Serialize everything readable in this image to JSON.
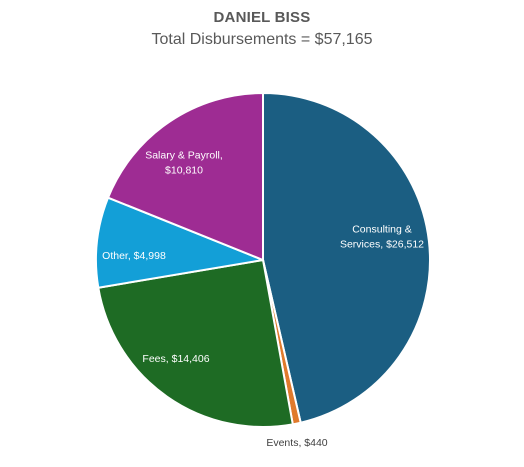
{
  "chart_data": {
    "type": "pie",
    "title": "DANIEL BISS",
    "subtitle": "Total Disbursements = $57,165",
    "slices": [
      {
        "label": "Consulting & Services",
        "value": 26512,
        "value_text": "$26,512",
        "color": "#1b5e82",
        "label_color": "#ffffff",
        "label_lines": [
          "Consulting &",
          "Services, $26,512"
        ]
      },
      {
        "label": "Events",
        "value": 440,
        "value_text": "$440",
        "color": "#e07a2c",
        "label_color": "#404040",
        "label_lines": [
          "Events, $440"
        ]
      },
      {
        "label": "Fees",
        "value": 14406,
        "value_text": "$14,406",
        "color": "#1e6b24",
        "label_color": "#ffffff",
        "label_lines": [
          "Fees, $14,406"
        ]
      },
      {
        "label": "Other",
        "value": 4998,
        "value_text": "$4,998",
        "color": "#139fd7",
        "label_color": "#ffffff",
        "label_lines": [
          "Other, $4,998"
        ]
      },
      {
        "label": "Salary & Payroll",
        "value": 10810,
        "value_text": "$10,810",
        "color": "#9e2c93",
        "label_color": "#ffffff",
        "label_lines": [
          "Salary & Payroll,",
          "$10,810"
        ]
      }
    ]
  }
}
